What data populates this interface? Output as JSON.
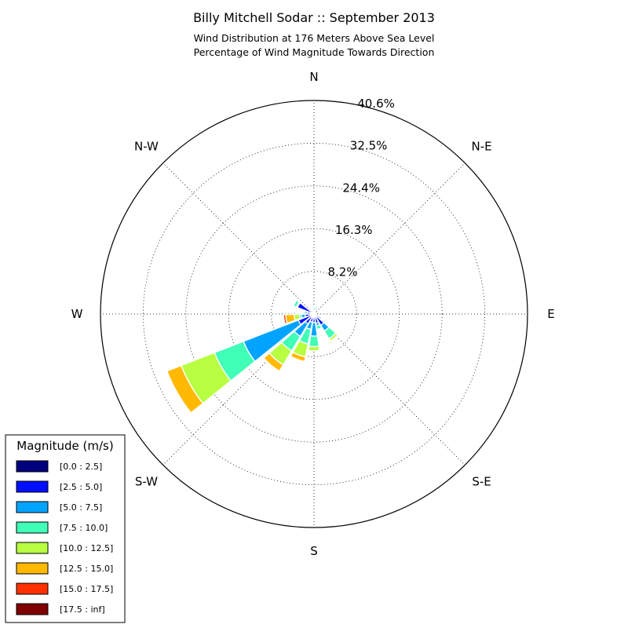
{
  "chart_data": {
    "type": "windrose",
    "title": "Billy Mitchell Sodar :: September 2013",
    "subtitle_lines": [
      "Wind Distribution at 176 Meters Above Sea Level",
      "Percentage of Wind Magnitude Towards Direction"
    ],
    "directions": [
      "N",
      "N-E",
      "E",
      "S-E",
      "S",
      "S-W",
      "W",
      "N-W"
    ],
    "radial_ticks": [
      "8.2%",
      "16.3%",
      "24.4%",
      "32.5%",
      "40.6%"
    ],
    "radial_max": 40.6,
    "legend_title": "Magnitude (m/s)",
    "bins": [
      {
        "label": "[0.0 : 2.5]",
        "color": "#00007f"
      },
      {
        "label": "[2.5 : 5.0]",
        "color": "#0010ff"
      },
      {
        "label": "[5.0 : 7.5]",
        "color": "#00a4ff"
      },
      {
        "label": "[7.5 : 10.0]",
        "color": "#40ffb7"
      },
      {
        "label": "[10.0 : 12.5]",
        "color": "#b7ff40"
      },
      {
        "label": "[12.5 : 15.0]",
        "color": "#ffb900"
      },
      {
        "label": "[15.0 : 17.5]",
        "color": "#ff3000"
      },
      {
        "label": "[17.5 : inf]",
        "color": "#7f0000"
      }
    ],
    "sector_width_deg": 20,
    "sectors": [
      {
        "direction_deg": 0,
        "cumulative": [
          0.2,
          0.6,
          1.0,
          1.4,
          1.4,
          1.4,
          1.4,
          1.4
        ]
      },
      {
        "direction_deg": 20,
        "cumulative": [
          0.3,
          0.8,
          1.2,
          1.5,
          1.5,
          1.5,
          1.5,
          1.5
        ]
      },
      {
        "direction_deg": 120,
        "cumulative": [
          0.3,
          1.1,
          1.5,
          1.5,
          1.5,
          1.5,
          1.5,
          1.5
        ]
      },
      {
        "direction_deg": 140,
        "cumulative": [
          0.4,
          2.5,
          3.8,
          5.5,
          6.0,
          6.0,
          6.0,
          6.0
        ]
      },
      {
        "direction_deg": 160,
        "cumulative": [
          0.4,
          1.8,
          2.3,
          3.0,
          3.2,
          3.2,
          3.2,
          3.2
        ]
      },
      {
        "direction_deg": 180,
        "cumulative": [
          0.4,
          1.6,
          4.2,
          6.2,
          7.0,
          7.0,
          7.0,
          7.0
        ]
      },
      {
        "direction_deg": 200,
        "cumulative": [
          0.4,
          1.6,
          3.0,
          5.8,
          8.3,
          9.2,
          9.2,
          9.2
        ]
      },
      {
        "direction_deg": 220,
        "cumulative": [
          0.4,
          2.2,
          5.0,
          8.2,
          11.3,
          12.7,
          12.7,
          12.7
        ]
      },
      {
        "direction_deg": 240,
        "cumulative": [
          0.4,
          3.2,
          14.4,
          20.3,
          27.1,
          30.0,
          30.0,
          30.0
        ]
      },
      {
        "direction_deg": 260,
        "cumulative": [
          0.4,
          1.7,
          2.4,
          2.8,
          3.8,
          5.4,
          5.8,
          5.8
        ]
      },
      {
        "direction_deg": 280,
        "cumulative": [
          0.4,
          1.3,
          1.7,
          2.0,
          2.0,
          2.0,
          2.0,
          2.0
        ]
      },
      {
        "direction_deg": 300,
        "cumulative": [
          0.3,
          3.4,
          3.6,
          4.2,
          4.2,
          4.2,
          4.2,
          4.2
        ]
      }
    ]
  }
}
